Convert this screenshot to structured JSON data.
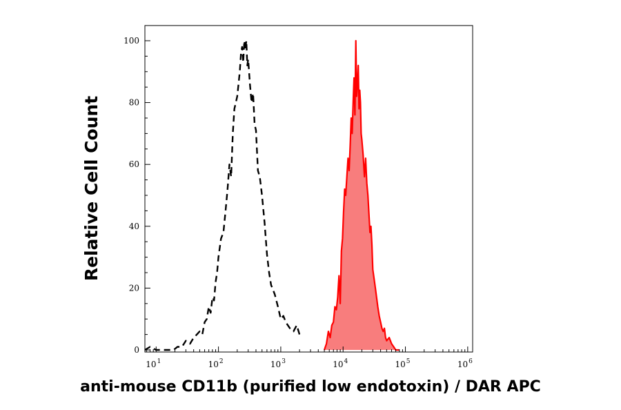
{
  "chart_data": {
    "type": "histogram",
    "xlabel": "anti-mouse CD11b (purified low endotoxin) / DAR APC",
    "ylabel": "Relative Cell Count",
    "x_scale": "log",
    "xlim": [
      6.6,
      1200000
    ],
    "ylim": [
      0,
      105
    ],
    "x_ticks": [
      {
        "base": "10",
        "exp": "1",
        "value": 10
      },
      {
        "base": "10",
        "exp": "2",
        "value": 100
      },
      {
        "base": "10",
        "exp": "3",
        "value": 1000
      },
      {
        "base": "10",
        "exp": "4",
        "value": 10000
      },
      {
        "base": "10",
        "exp": "5",
        "value": 100000
      },
      {
        "base": "10",
        "exp": "6",
        "value": 1000000
      }
    ],
    "y_ticks": [
      0,
      20,
      40,
      60,
      80,
      100
    ],
    "series": [
      {
        "style": "dashed",
        "color": "#000000",
        "fill": false,
        "x": [
          6.6,
          8,
          10,
          13,
          16,
          19,
          22,
          26,
          30,
          35,
          40,
          45,
          50,
          55,
          60,
          65,
          70,
          75,
          80,
          85,
          90,
          95,
          100,
          110,
          120,
          130,
          140,
          150,
          160,
          170,
          180,
          190,
          200,
          210,
          220,
          230,
          240,
          250,
          260,
          270,
          280,
          290,
          300,
          320,
          340,
          360,
          380,
          400,
          430,
          460,
          500,
          550,
          600,
          650,
          700,
          800,
          900,
          1000,
          1100,
          1200,
          1400,
          1600,
          1800,
          2000
        ],
        "values": [
          0,
          1,
          0,
          0,
          0,
          0,
          1,
          1,
          3,
          2,
          4,
          5,
          6,
          5,
          9,
          10,
          14,
          12,
          17,
          16,
          22,
          25,
          30,
          36,
          38,
          45,
          52,
          60,
          56,
          70,
          78,
          80,
          82,
          86,
          90,
          96,
          98,
          93,
          100,
          97,
          100,
          92,
          94,
          86,
          80,
          83,
          73,
          71,
          58,
          56,
          50,
          41,
          31,
          25,
          21,
          18,
          14,
          10,
          11,
          9,
          7,
          6,
          8,
          5
        ]
      },
      {
        "style": "solid-filled",
        "color": "#ff0000",
        "fill_color": "#f87d7d",
        "fill": true,
        "x": [
          5000,
          5400,
          5800,
          6200,
          6600,
          7000,
          7400,
          7800,
          8200,
          8600,
          9000,
          9400,
          9800,
          10200,
          10600,
          11000,
          11500,
          12000,
          12500,
          13000,
          13500,
          14000,
          14500,
          15000,
          15500,
          16000,
          16500,
          17000,
          17500,
          18000,
          18500,
          19000,
          19500,
          20000,
          21000,
          22000,
          23000,
          24000,
          25000,
          26000,
          27000,
          28000,
          29000,
          30000,
          32000,
          34000,
          36000,
          38000,
          40000,
          42000,
          44000,
          46000,
          48000,
          50000,
          55000,
          60000,
          65000,
          70000,
          80000
        ],
        "values": [
          0,
          2,
          6,
          4,
          8,
          9,
          14,
          13,
          17,
          24,
          15,
          32,
          36,
          45,
          52,
          50,
          56,
          62,
          58,
          66,
          75,
          70,
          80,
          88,
          76,
          100,
          82,
          86,
          92,
          78,
          84,
          80,
          70,
          68,
          63,
          56,
          62,
          54,
          50,
          44,
          38,
          40,
          34,
          26,
          22,
          18,
          14,
          11,
          9,
          7,
          6,
          7,
          4,
          3,
          4,
          2,
          1,
          0,
          0
        ]
      }
    ]
  }
}
